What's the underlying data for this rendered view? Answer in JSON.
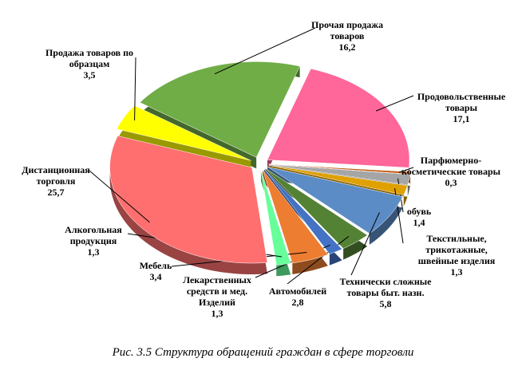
{
  "chart_data": {
    "type": "pie",
    "title": "Рис. 3.5 Структура обращений граждан в сфере торговли",
    "categories": [
      "Прочая продажа товаров",
      "Продовольственные товары",
      "Парфюмерно-косметические товары",
      "обувь",
      "Текстильные, трикотажные, швейные изделия",
      "Технически сложные товары быт. назн.",
      "Автомобилей",
      "Лекарственных средств и мед. Изделий",
      "Мебель",
      "Алкогольная продукция",
      "Дистанционная торговля",
      "Продажа товаров по образцам"
    ],
    "values": [
      16.2,
      17.1,
      0.3,
      1.4,
      1.3,
      5.8,
      2.8,
      1.3,
      3.4,
      1.3,
      25.7,
      3.5
    ],
    "value_labels": [
      "16,2",
      "17,1",
      "0,3",
      "1,4",
      "1,3",
      "5,8",
      "2,8",
      "1,3",
      "3,4",
      "1,3",
      "25,7",
      "3,5"
    ],
    "colors": [
      "#70ad47",
      "#ff6699",
      "#c55a11",
      "#a5a5a5",
      "#e0a000",
      "#5b8cc6",
      "#548235",
      "#4472c4",
      "#ed7d31",
      "#66ff99",
      "#ff6f6f",
      "#ffff00"
    ]
  }
}
